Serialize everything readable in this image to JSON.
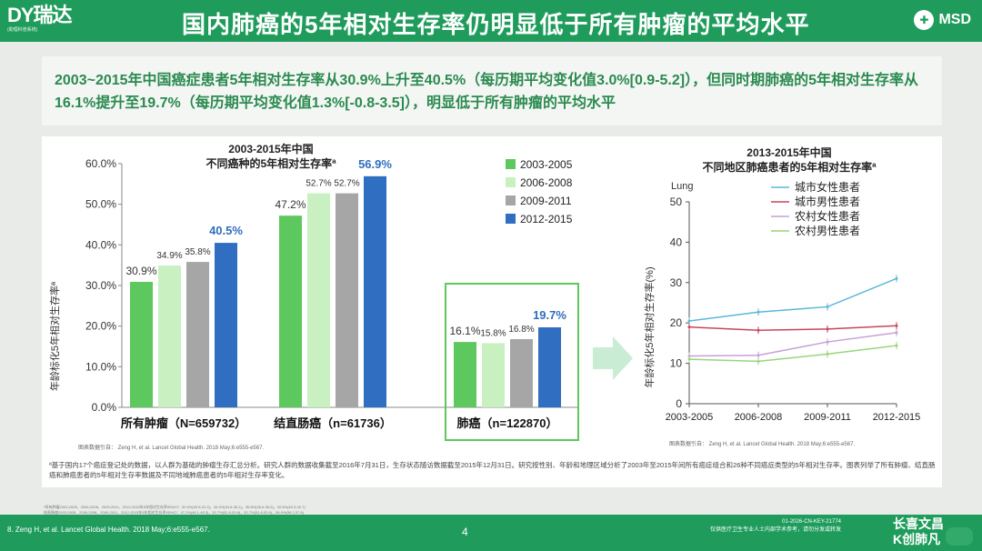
{
  "header": {
    "logo_main": "DY瑞达",
    "logo_sub": "(助理科普系统)",
    "title": "国内肺癌的5年相对生存率仍明显低于所有肿瘤的平均水平",
    "brand_right": "MSD"
  },
  "summary": {
    "text": "2003~2015年中国癌症患者5年相对生存率从30.9%上升至40.5%（每历期平均变化值3.0%[0.9-5.2]），但同时期肺癌的5年相对生存率从16.1%提升至19.7%（每历期平均变化值1.3%[-0.8-3.5]），明显低于所有肿瘤的平均水平"
  },
  "colors": {
    "primary": "#1f9c5c",
    "s1": "#5dc85e",
    "s2": "#c8f0c0",
    "s3": "#a6a6a6",
    "s4": "#2f6ec0",
    "urbanF": "#5bb8d9",
    "urbanM": "#c9455e",
    "ruralF": "#c7a1d6",
    "ruralM": "#9bd47c"
  },
  "chart_data": [
    {
      "type": "bar",
      "title": "2003-2015年中国",
      "subtitle": "不同癌种的5年相对生存率ª",
      "ylabel": "年龄标化5年相对生存率ª",
      "ylim": [
        0,
        60
      ],
      "yticks": [
        "0.0%",
        "10.0%",
        "20.0%",
        "30.0%",
        "40.0%",
        "50.0%",
        "60.0%"
      ],
      "categories": [
        "所有肿瘤（N=659732）",
        "结直肠癌（n=61736）",
        "肺癌（n=122870）"
      ],
      "series": [
        {
          "name": "2003-2005",
          "values": [
            30.9,
            47.2,
            16.1
          ],
          "labels": [
            "30.9%",
            "47.2%",
            "16.1%"
          ]
        },
        {
          "name": "2006-2008",
          "values": [
            34.9,
            52.7,
            15.8
          ],
          "labels": [
            "34.9%",
            "52.7%",
            "15.8%"
          ]
        },
        {
          "name": "2009-2011",
          "values": [
            35.8,
            52.7,
            16.8
          ],
          "labels": [
            "35.8%",
            "52.7%",
            "16.8%"
          ]
        },
        {
          "name": "2012-2015",
          "values": [
            40.5,
            56.9,
            19.7
          ],
          "labels": [
            "40.5%",
            "56.9%",
            "19.7%"
          ]
        }
      ],
      "source": "图表数据引自：    Zeng H, et al. Lancet Global Health. 2018 May;6:e555-e567."
    },
    {
      "type": "line",
      "title": "2013-2015年中国",
      "subtitle": "不同地区肺癌患者的5年相对生存率ª",
      "annotation": "Lung",
      "ylabel": "年龄标化5年相对生存率(%)",
      "ylim": [
        0,
        50
      ],
      "yticks": [
        "0",
        "10",
        "20",
        "30",
        "40",
        "50"
      ],
      "categories": [
        "2003-2005",
        "2006-2008",
        "2009-2011",
        "2012-2015"
      ],
      "series": [
        {
          "name": "城市女性患者",
          "values": [
            20.5,
            22.7,
            24.0,
            31.0
          ]
        },
        {
          "name": "城市男性患者",
          "values": [
            19.0,
            18.2,
            18.5,
            19.3
          ]
        },
        {
          "name": "农村女性患者",
          "values": [
            11.8,
            12.0,
            15.3,
            17.6
          ]
        },
        {
          "name": "农村男性患者",
          "values": [
            11.0,
            10.5,
            12.3,
            14.4
          ]
        }
      ],
      "source": "图表数据引自：    Zeng H, et al. Lancet Global Health. 2018 May;6:e555-e567."
    }
  ],
  "note": "ª基于国内17个癌症登记处的数据，以人群为基础的肿瘤生存汇总分析。研究人群的数据收集截至2016年7月31日，生存状态随访数据截至2015年12月31日。研究按性别、年龄和地理区域分析了2003年至2015年间所有癌症组合和26种不同癌症类型的5年相对生存率。图表列举了所有肿瘤、结直肠癌和肺癌患者的5年相对生存率数据及不同地域肺癌患者的5年相对生存率变化。",
  "small_table": [
    "*所有肿瘤2003-2005、2006-2008、2009-2011、2012-2015年5年相对生存率95%CI：30.9%(30.6-31.2)，34.9%(34.6-35.1)，35.8%(35.6-36.0)，40.5%(40.3-40.7)",
    "结直肠癌2003-2005、2006-2008、2009-2011、2012-2015年5年相对生存率95%CI：47.2%(46.1-48.3)，52.7%(51.8-53.6)，52.7%(51.8-53.6)，56.9%(56.2-57.6)",
    "肺癌2003-2005、2006-2008、2009-2011、2012-2015年5年相对生存率95%CI：16.1%(15.6-16.6)，15.8%(15.3-16.2)，16.8%(16.4-17.2)，19.7%(19.3-20.1)"
  ],
  "footer": {
    "ref": "8. Zeng H, et al. Lancet Global Health. 2018 May;6:e555-e567.",
    "page": "4",
    "code1": "01-2026-CN-KEY-21774",
    "code2": "仅供医疗卫生专业人士内部学术参考，请勿分发或转发",
    "brand1": "长喜文昌",
    "brand2": "K创肺凡"
  }
}
